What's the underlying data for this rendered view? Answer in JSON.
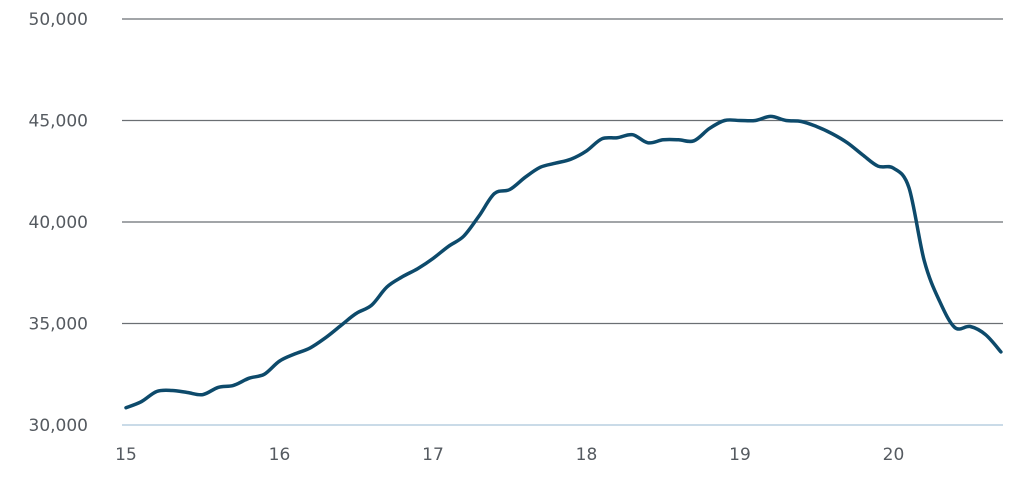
{
  "chart_data": {
    "type": "line",
    "title": "",
    "xlabel": "",
    "ylabel": "",
    "xlim": [
      15,
      20.7
    ],
    "ylim": [
      30000,
      50000
    ],
    "x_ticks": [
      {
        "value": 15,
        "label": "15"
      },
      {
        "value": 16,
        "label": "16"
      },
      {
        "value": 17,
        "label": "17"
      },
      {
        "value": 18,
        "label": "18"
      },
      {
        "value": 19,
        "label": "19"
      },
      {
        "value": 20,
        "label": "20"
      }
    ],
    "y_ticks": [
      {
        "value": 30000,
        "label": "30,000"
      },
      {
        "value": 35000,
        "label": "35,000"
      },
      {
        "value": 40000,
        "label": "40,000"
      },
      {
        "value": 45000,
        "label": "45,000"
      },
      {
        "value": 50000,
        "label": "50,000"
      }
    ],
    "grid": true,
    "legend": "none",
    "colors": {
      "line": "#0d4a6b",
      "grid": "#6b6f73",
      "baseline": "#b9cfe0",
      "tick_text": "#555a60"
    },
    "series": [
      {
        "x": [
          15.0,
          15.1,
          15.2,
          15.3,
          15.4,
          15.5,
          15.6,
          15.7,
          15.8,
          15.9,
          16.0,
          16.1,
          16.2,
          16.3,
          16.4,
          16.5,
          16.6,
          16.7,
          16.8,
          16.9,
          17.0,
          17.1,
          17.2,
          17.3,
          17.4,
          17.5,
          17.6,
          17.7,
          17.8,
          17.9,
          18.0,
          18.1,
          18.2,
          18.3,
          18.4,
          18.5,
          18.6,
          18.7,
          18.8,
          18.9,
          19.0,
          19.1,
          19.2,
          19.3,
          19.4,
          19.5,
          19.6,
          19.7,
          19.8,
          19.9,
          20.0,
          20.1,
          20.2,
          20.3,
          20.4,
          20.5,
          20.6,
          20.7
        ],
        "values": [
          30850,
          31150,
          31650,
          31700,
          31600,
          31500,
          31850,
          31950,
          32300,
          32500,
          33150,
          33500,
          33800,
          34300,
          34900,
          35500,
          35900,
          36800,
          37300,
          37700,
          38200,
          38800,
          39300,
          40300,
          41400,
          41600,
          42200,
          42700,
          42900,
          43100,
          43500,
          44100,
          44150,
          44300,
          43900,
          44050,
          44050,
          44000,
          44600,
          45000,
          45000,
          45000,
          45200,
          45000,
          44950,
          44700,
          44350,
          43900,
          43300,
          42750,
          42650,
          41700,
          38100,
          36100,
          34800,
          34850,
          34450,
          33600
        ]
      }
    ]
  }
}
